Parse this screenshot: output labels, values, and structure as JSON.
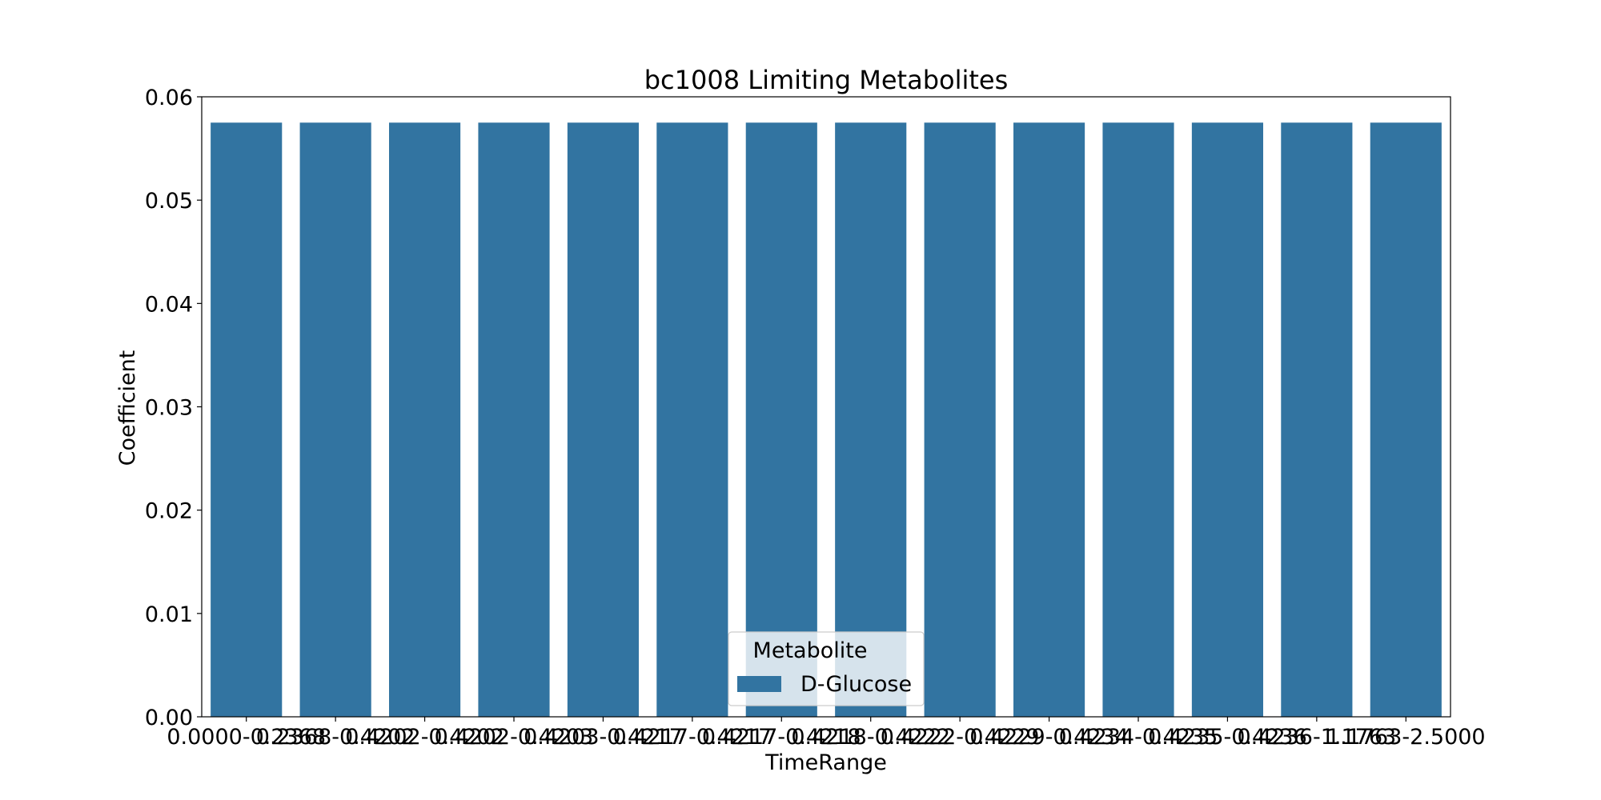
{
  "chart_data": {
    "type": "bar",
    "title": "bc1008 Limiting Metabolites",
    "xlabel": "TimeRange",
    "ylabel": "Coefficient",
    "ylim": [
      0,
      0.06
    ],
    "yticks": [
      "0.00",
      "0.01",
      "0.02",
      "0.03",
      "0.04",
      "0.05",
      "0.06"
    ],
    "categories": [
      "0.0000-0.2368",
      "0.2368-0.4202",
      "0.4202-0.4202",
      "0.4202-0.4203",
      "0.4203-0.4217",
      "0.4217-0.4217",
      "0.4217-0.4218",
      "0.4218-0.4222",
      "0.4222-0.4229",
      "0.4229-0.4234",
      "0.4234-0.4235",
      "0.4235-0.4236",
      "0.4236-1.1763",
      "1.1763-2.5000"
    ],
    "series": [
      {
        "name": "D-Glucose",
        "color": "#3274a1",
        "values": [
          0.0575,
          0.0575,
          0.0575,
          0.0575,
          0.0575,
          0.0575,
          0.0575,
          0.0575,
          0.0575,
          0.0575,
          0.0575,
          0.0575,
          0.0575,
          0.0575
        ]
      }
    ],
    "legend": {
      "title": "Metabolite",
      "position": "lower center"
    },
    "grid": false
  }
}
